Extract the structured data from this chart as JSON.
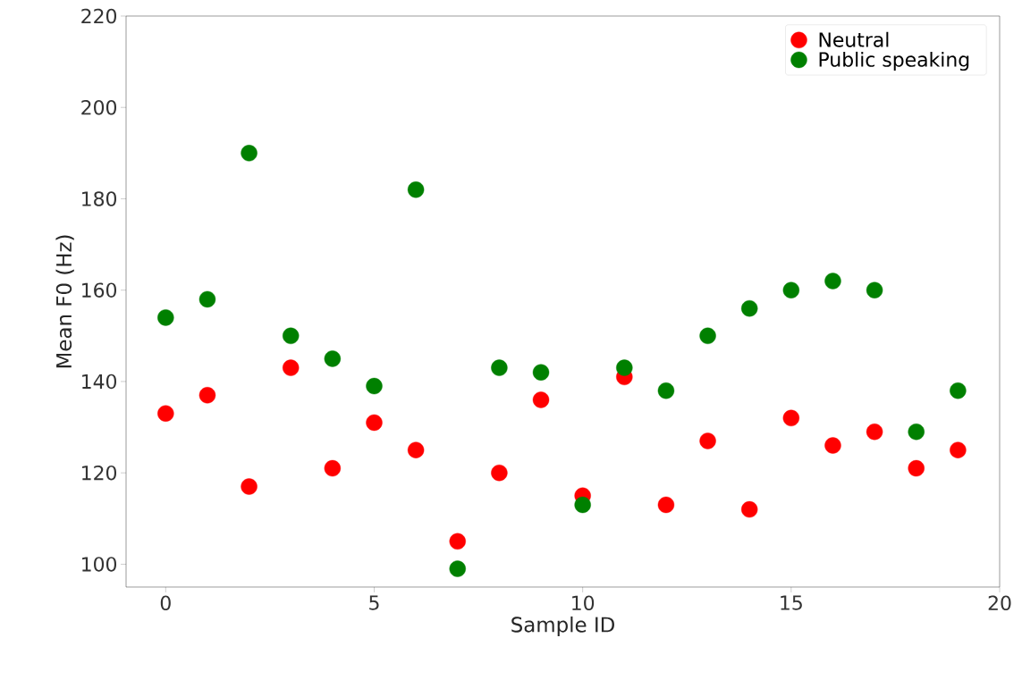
{
  "chart_data": {
    "type": "scatter",
    "xlabel": "Sample ID",
    "ylabel": "Mean F0 (Hz)",
    "x": [
      0,
      1,
      2,
      3,
      4,
      5,
      6,
      7,
      8,
      9,
      10,
      11,
      12,
      13,
      14,
      15,
      16,
      17,
      18,
      19
    ],
    "series": [
      {
        "name": "Neutral",
        "color": "#ff0000",
        "values": [
          133,
          137,
          117,
          143,
          121,
          131,
          125,
          105,
          120,
          136,
          115,
          141,
          113,
          127,
          112,
          132,
          126,
          129,
          121,
          125
        ]
      },
      {
        "name": "Public speaking",
        "color": "#008000",
        "values": [
          154,
          158,
          190,
          150,
          145,
          139,
          182,
          99,
          143,
          142,
          113,
          143,
          138,
          150,
          156,
          160,
          162,
          160,
          129,
          138
        ]
      }
    ],
    "xlim": [
      -0.95,
      20
    ],
    "ylim": [
      95,
      220
    ],
    "xticks": [
      0,
      5,
      10,
      15,
      20
    ],
    "yticks": [
      100,
      120,
      140,
      160,
      180,
      200,
      220
    ],
    "legend": "top right",
    "marker": "circle",
    "grid": false
  }
}
